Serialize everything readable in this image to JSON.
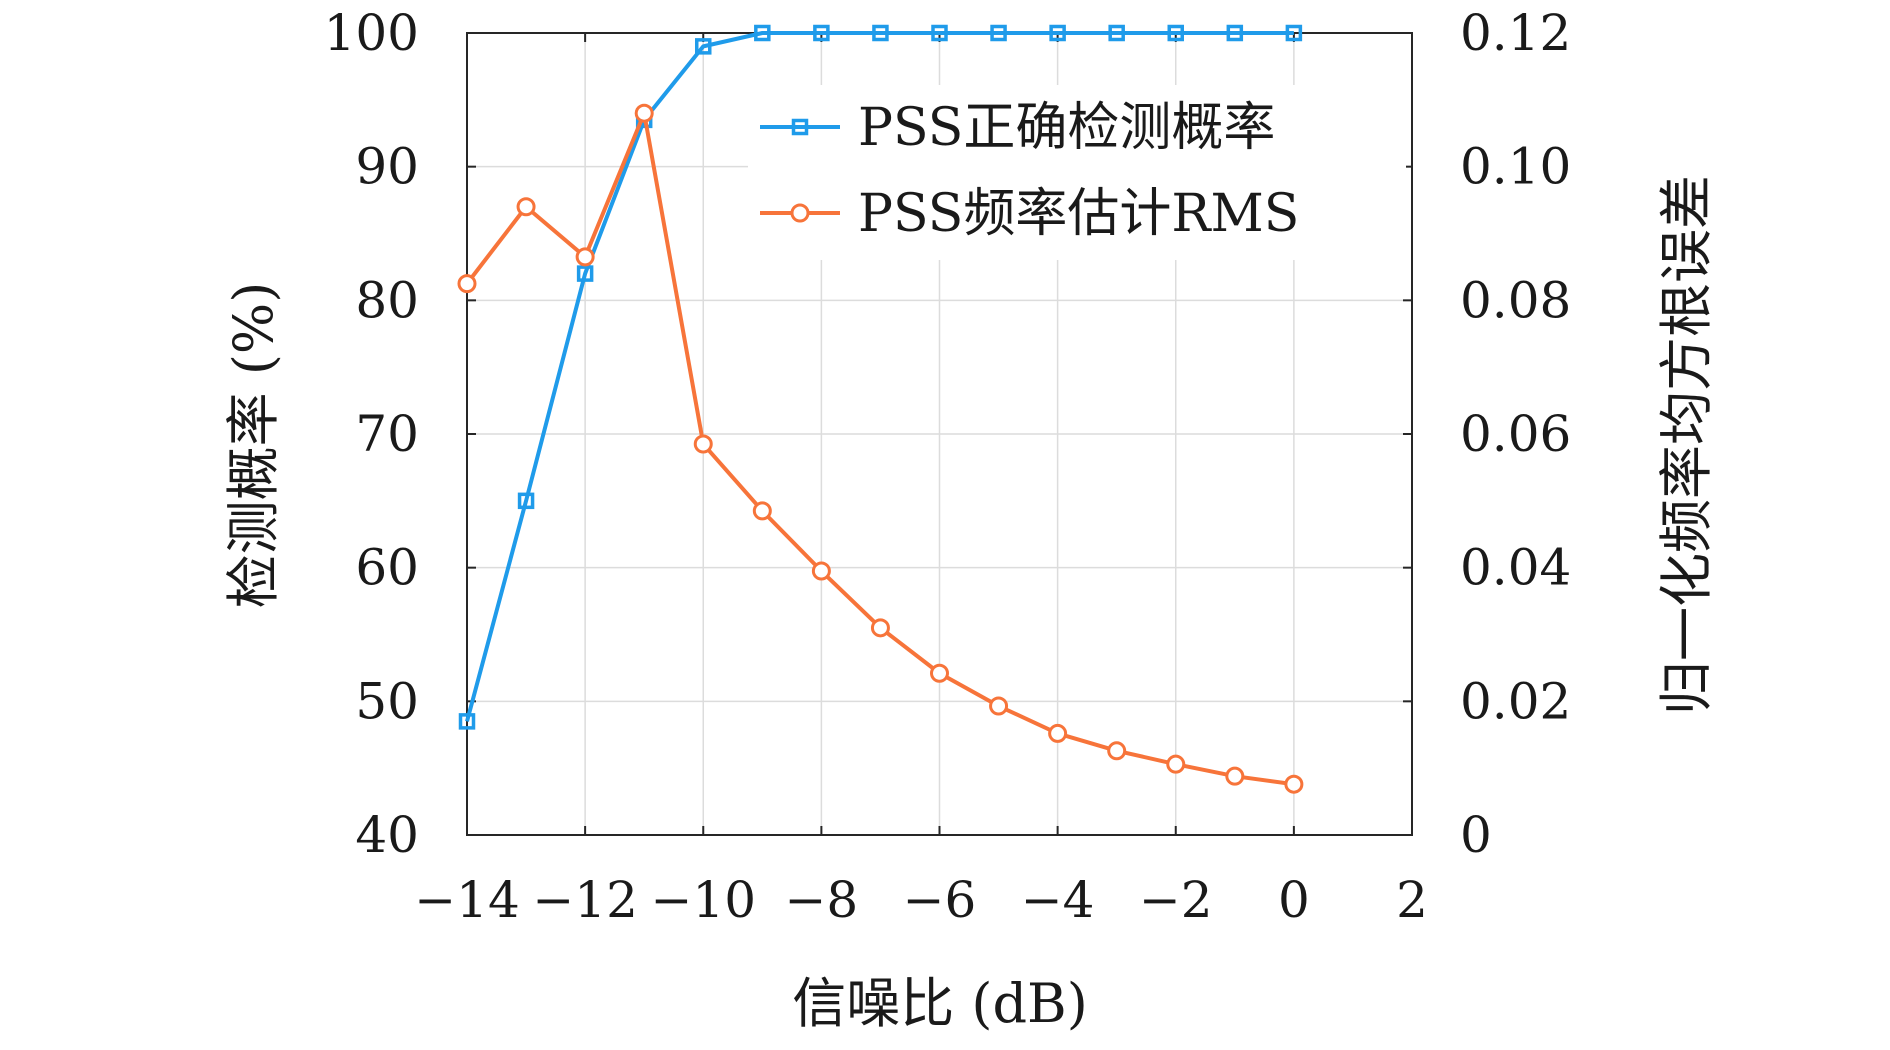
{
  "chart_data": {
    "type": "line",
    "xlabel": "信噪比 (dB)",
    "ylabel_left": "检测概率 (%)",
    "ylabel_right": "归一化频率均方根误差",
    "xlim": [
      -14,
      2
    ],
    "ylim_left": [
      40,
      100
    ],
    "ylim_right": [
      0,
      0.12
    ],
    "x_ticks": [
      -14,
      -12,
      -10,
      -8,
      -6,
      -4,
      -2,
      0,
      2
    ],
    "x_tick_labels": [
      "−14",
      "−12",
      "−10",
      "−8",
      "−6",
      "−4",
      "−2",
      "0",
      "2"
    ],
    "y_left_ticks": [
      40,
      50,
      60,
      70,
      80,
      90,
      100
    ],
    "y_left_tick_labels": [
      "40",
      "50",
      "60",
      "70",
      "80",
      "90",
      "100"
    ],
    "y_right_ticks": [
      0,
      0.02,
      0.04,
      0.06,
      0.08,
      0.1,
      0.12
    ],
    "y_right_tick_labels": [
      "0",
      "0.02",
      "0.04",
      "0.06",
      "0.08",
      "0.10",
      "0.12"
    ],
    "grid": true,
    "legend_position": "top-right",
    "series": [
      {
        "name": "PSS正确检测概率",
        "axis": "left",
        "color": "#1f9bea",
        "marker": "square",
        "x": [
          -14,
          -13,
          -12,
          -11,
          -10,
          -9,
          -8,
          -7,
          -6,
          -5,
          -4,
          -3,
          -2,
          -1,
          0
        ],
        "y": [
          48.5,
          65,
          82,
          93.5,
          99,
          100,
          100,
          100,
          100,
          100,
          100,
          100,
          100,
          100,
          100
        ]
      },
      {
        "name": "PSS频率估计RMS",
        "axis": "right",
        "color": "#f7743a",
        "marker": "circle",
        "x": [
          -14,
          -13,
          -12,
          -11,
          -10,
          -9,
          -8,
          -7,
          -6,
          -5,
          -4,
          -3,
          -2,
          -1,
          0
        ],
        "y": [
          0.0825,
          0.094,
          0.0865,
          0.108,
          0.0585,
          0.0485,
          0.0395,
          0.031,
          0.0242,
          0.0193,
          0.0152,
          0.0126,
          0.0106,
          0.0088,
          0.0076
        ]
      }
    ]
  }
}
